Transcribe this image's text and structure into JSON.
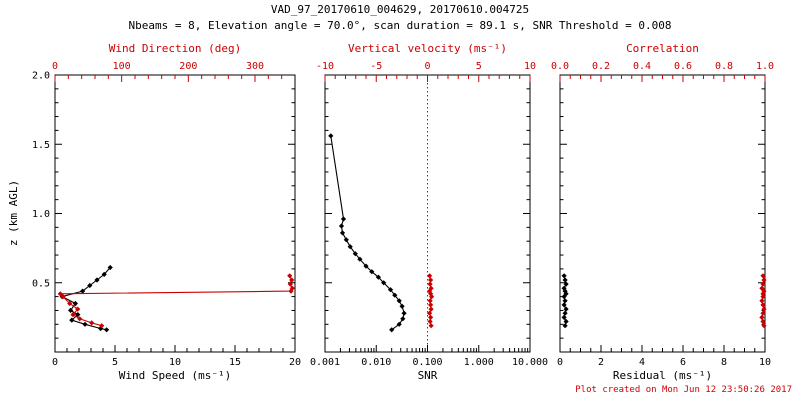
{
  "title": {
    "line1": "VAD_97_20170610_004629, 20170610.004725",
    "line2": "Nbeams = 8, Elevation angle = 70.0°, scan duration = 89.1 s, SNR Threshold = 0.008"
  },
  "footer": {
    "created": "Plot created on Mon Jun 12 23:50:26 2017"
  },
  "colors": {
    "primary": "#000000",
    "accent": "#cc0000",
    "background": "#ffffff"
  },
  "chart_data": [
    {
      "type": "line",
      "name": "wind",
      "xlabel": "Wind Speed (ms⁻¹)",
      "xscale": "linear",
      "xlim": [
        0,
        20
      ],
      "xticks": [
        0,
        5,
        10,
        15,
        20
      ],
      "xtick_labels": [
        "0",
        "5",
        "10",
        "15",
        "20"
      ],
      "x_minor_step": 1,
      "top_label": "Wind Direction (deg)",
      "top_lim": [
        0,
        360
      ],
      "top_ticks": [
        0,
        100,
        200,
        300
      ],
      "top_tick_labels": [
        "0",
        "100",
        "200",
        "300"
      ],
      "top_minor_step": 20,
      "ylabel": "z (km AGL)",
      "ylim": [
        0,
        2
      ],
      "yticks": [
        0.5,
        1.0,
        1.5,
        2.0
      ],
      "ytick_labels": [
        "0.5",
        "1.0",
        "1.5",
        "2.0"
      ],
      "grid": false,
      "legend": "none",
      "series": [
        {
          "name": "wind-speed",
          "axis": "bottom",
          "color": "#000000",
          "z": [
            0.61,
            0.56,
            0.52,
            0.48,
            0.44,
            0.4,
            0.35,
            0.3,
            0.27,
            0.23,
            0.2,
            0.17,
            0.16
          ],
          "values": [
            4.6,
            4.1,
            3.5,
            2.9,
            2.3,
            0.6,
            1.7,
            1.3,
            1.9,
            1.4,
            2.5,
            3.8,
            4.3
          ]
        },
        {
          "name": "wind-direction",
          "axis": "top",
          "color": "#cc0000",
          "z": [
            0.55,
            0.52,
            0.49,
            0.46,
            0.44,
            0.42,
            0.4,
            0.35,
            0.31,
            0.27,
            0.24,
            0.21,
            0.19
          ],
          "values": [
            352,
            355,
            353,
            356,
            354,
            8,
            12,
            22,
            34,
            27,
            37,
            55,
            70
          ]
        }
      ]
    },
    {
      "type": "line",
      "name": "snr",
      "xlabel": "SNR",
      "xscale": "log",
      "xlim": [
        0.001,
        10
      ],
      "xticks": [
        0.001,
        0.01,
        0.1,
        1,
        10
      ],
      "xtick_labels": [
        "0.001",
        "0.010",
        "0.100",
        "1.000",
        "10.000"
      ],
      "top_label": "Vertical velocity (ms⁻¹)",
      "top_lim": [
        -10,
        10
      ],
      "top_ticks": [
        -10,
        -5,
        0,
        5,
        10
      ],
      "top_tick_labels": [
        "-10",
        "-5",
        "0",
        "5",
        "10"
      ],
      "top_minor_step": 1,
      "ylim": [
        0,
        2
      ],
      "yticks": [
        0.5,
        1.0,
        1.5,
        2.0
      ],
      "ytick_labels": [],
      "grid": false,
      "legend": "none",
      "vline": {
        "axis": "top",
        "value": 0,
        "color": "#cc0000",
        "style": "dotted"
      },
      "series": [
        {
          "name": "snr-profile",
          "axis": "bottom",
          "color": "#000000",
          "z": [
            1.56,
            0.96,
            0.91,
            0.86,
            0.81,
            0.76,
            0.71,
            0.67,
            0.62,
            0.58,
            0.54,
            0.5,
            0.45,
            0.41,
            0.37,
            0.33,
            0.28,
            0.24,
            0.2,
            0.16
          ],
          "values": [
            0.0013,
            0.0023,
            0.0021,
            0.0022,
            0.0026,
            0.0031,
            0.0039,
            0.0048,
            0.0063,
            0.0082,
            0.011,
            0.014,
            0.019,
            0.023,
            0.028,
            0.032,
            0.035,
            0.033,
            0.028,
            0.02
          ]
        },
        {
          "name": "vertical-velocity",
          "axis": "top",
          "color": "#cc0000",
          "z": [
            0.55,
            0.52,
            0.49,
            0.46,
            0.44,
            0.42,
            0.4,
            0.37,
            0.34,
            0.31,
            0.28,
            0.25,
            0.22,
            0.19
          ],
          "values": [
            0.2,
            0.3,
            0.25,
            0.35,
            0.2,
            0.3,
            0.4,
            0.25,
            0.3,
            0.35,
            0.2,
            0.3,
            0.25,
            0.35
          ]
        }
      ]
    },
    {
      "type": "line",
      "name": "residual",
      "xlabel": "Residual (ms⁻¹)",
      "xscale": "linear",
      "xlim": [
        0,
        10
      ],
      "xticks": [
        0,
        2,
        4,
        6,
        8,
        10
      ],
      "xtick_labels": [
        "0",
        "2",
        "4",
        "6",
        "8",
        "10"
      ],
      "x_minor_step": 0.5,
      "top_label": "Correlation",
      "top_lim": [
        0,
        1
      ],
      "top_ticks": [
        0,
        0.2,
        0.4,
        0.6,
        0.8,
        1.0
      ],
      "top_tick_labels": [
        "0.0",
        "0.2",
        "0.4",
        "0.6",
        "0.8",
        "1.0"
      ],
      "top_minor_step": 0.05,
      "ylim": [
        0,
        2
      ],
      "yticks": [
        0.5,
        1.0,
        1.5,
        2.0
      ],
      "ytick_labels": [],
      "grid": false,
      "legend": "none",
      "series": [
        {
          "name": "residual-profile",
          "axis": "bottom",
          "color": "#000000",
          "z": [
            0.55,
            0.52,
            0.49,
            0.46,
            0.44,
            0.42,
            0.4,
            0.37,
            0.34,
            0.31,
            0.28,
            0.25,
            0.22,
            0.19
          ],
          "values": [
            0.2,
            0.25,
            0.3,
            0.2,
            0.25,
            0.3,
            0.2,
            0.25,
            0.2,
            0.3,
            0.25,
            0.2,
            0.3,
            0.25
          ]
        },
        {
          "name": "correlation-profile",
          "axis": "top",
          "color": "#cc0000",
          "z": [
            0.55,
            0.52,
            0.49,
            0.46,
            0.44,
            0.42,
            0.4,
            0.37,
            0.34,
            0.31,
            0.28,
            0.25,
            0.22,
            0.19
          ],
          "values": [
            0.99,
            0.995,
            0.99,
            0.985,
            0.995,
            0.99,
            0.99,
            0.985,
            0.99,
            0.995,
            0.99,
            0.985,
            0.99,
            0.995
          ]
        }
      ]
    }
  ]
}
